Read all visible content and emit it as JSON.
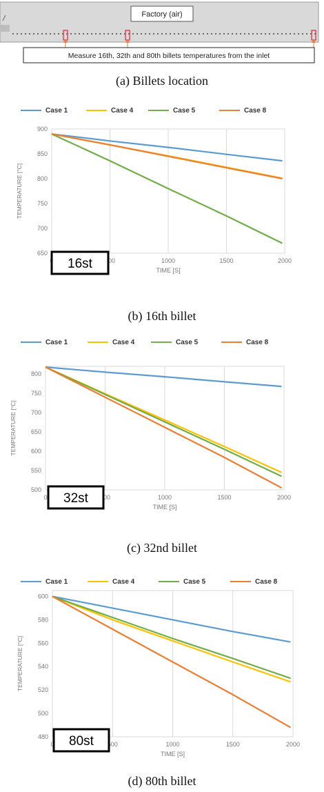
{
  "diagram": {
    "factory_label": "Factory (air)",
    "measure_label": "Measure 16th, 32th and 80th billets temperatures from the inlet",
    "caption": "(a)  Billets  location"
  },
  "colors": {
    "case1": "#5b9bd5",
    "case4": "#ffc000",
    "case5": "#70ad47",
    "case8": "#ed7d31"
  },
  "chart_data": [
    {
      "type": "line",
      "caption": "(b)  16th  billet",
      "badge": "16st",
      "xlabel": "TIME [S]",
      "ylabel": "TEMPERATURE [°C]",
      "xlim": [
        0,
        2000
      ],
      "ylim": [
        650,
        900
      ],
      "xticks": [
        0,
        500,
        1000,
        1500,
        2000
      ],
      "yticks": [
        650,
        700,
        750,
        800,
        850,
        900
      ],
      "legend_position": "top",
      "series": [
        {
          "name": "Case 1",
          "color": "#5b9bd5",
          "x": [
            0,
            500,
            1000,
            1500,
            1980
          ],
          "y": [
            890,
            876,
            863,
            849,
            836
          ]
        },
        {
          "name": "Case 4",
          "color": "#ffc000",
          "x": [
            0,
            500,
            1000,
            1500,
            1980
          ],
          "y": [
            890,
            868,
            846,
            823,
            801
          ]
        },
        {
          "name": "Case 5",
          "color": "#70ad47",
          "x": [
            0,
            500,
            1000,
            1500,
            1980
          ],
          "y": [
            890,
            836,
            780,
            725,
            670
          ]
        },
        {
          "name": "Case 8",
          "color": "#ed7d31",
          "x": [
            0,
            500,
            1000,
            1500,
            1980
          ],
          "y": [
            890,
            868,
            845,
            822,
            800
          ]
        }
      ]
    },
    {
      "type": "line",
      "caption": "(c)  32nd  billet",
      "badge": "32st",
      "xlabel": "TIME [S]",
      "ylabel": "TEMPERATURE [°C]",
      "xlim": [
        0,
        2000
      ],
      "ylim": [
        500,
        820
      ],
      "xticks": [
        0,
        500,
        1000,
        1500,
        2000
      ],
      "yticks": [
        500,
        550,
        600,
        650,
        700,
        750,
        800
      ],
      "legend_position": "top",
      "series": [
        {
          "name": "Case 1",
          "color": "#5b9bd5",
          "x": [
            0,
            500,
            1000,
            1500,
            1980
          ],
          "y": [
            818,
            805,
            793,
            780,
            768
          ]
        },
        {
          "name": "Case 4",
          "color": "#ffc000",
          "x": [
            0,
            500,
            1000,
            1500,
            1980
          ],
          "y": [
            818,
            749,
            681,
            612,
            545
          ]
        },
        {
          "name": "Case 5",
          "color": "#70ad47",
          "x": [
            0,
            500,
            1000,
            1500,
            1980
          ],
          "y": [
            818,
            747,
            676,
            605,
            535
          ]
        },
        {
          "name": "Case 8",
          "color": "#ed7d31",
          "x": [
            0,
            500,
            1000,
            1500,
            1980
          ],
          "y": [
            818,
            740,
            662,
            584,
            505
          ]
        }
      ]
    },
    {
      "type": "line",
      "caption": "(d)  80th  billet",
      "badge": "80st",
      "xlabel": "TIME [S]",
      "ylabel": "TEMPERATURE [°C]",
      "xlim": [
        0,
        2000
      ],
      "ylim": [
        480,
        605
      ],
      "xticks": [
        0,
        500,
        1000,
        1500,
        2000
      ],
      "yticks": [
        480,
        500,
        520,
        540,
        560,
        580,
        600
      ],
      "legend_position": "top",
      "series": [
        {
          "name": "Case 1",
          "color": "#5b9bd5",
          "x": [
            0,
            500,
            1000,
            1500,
            1980
          ],
          "y": [
            600,
            590,
            580,
            570,
            561
          ]
        },
        {
          "name": "Case 4",
          "color": "#ffc000",
          "x": [
            0,
            500,
            1000,
            1500,
            1980
          ],
          "y": [
            600,
            580,
            562,
            544,
            527
          ]
        },
        {
          "name": "Case 5",
          "color": "#70ad47",
          "x": [
            0,
            500,
            1000,
            1500,
            1980
          ],
          "y": [
            600,
            582,
            564,
            547,
            530
          ]
        },
        {
          "name": "Case 8",
          "color": "#ed7d31",
          "x": [
            0,
            500,
            1000,
            1500,
            1980
          ],
          "y": [
            600,
            572,
            544,
            516,
            488
          ]
        }
      ]
    }
  ]
}
